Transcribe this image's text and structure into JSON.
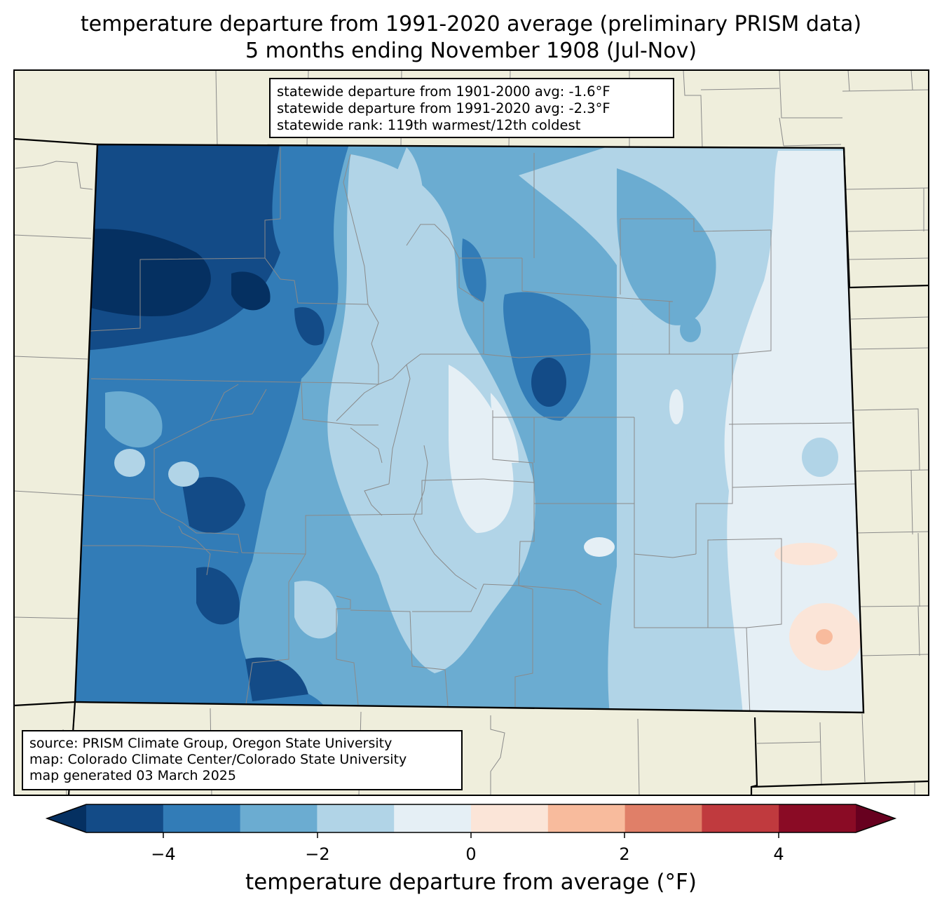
{
  "title": {
    "line1": "temperature departure from 1991-2020 average (preliminary PRISM data)",
    "line2": "5 months ending November 1908 (Jul-Nov)"
  },
  "stats_box": {
    "line1": "statewide departure from 1901-2000 avg: -1.6°F",
    "line2": "statewide departure from 1991-2020 avg: -2.3°F",
    "line3": "statewide rank: 119th warmest/12th coldest"
  },
  "source_box": {
    "line1": "source: PRISM Climate Group, Oregon State University",
    "line2": "map: Colorado Climate Center/Colorado State University",
    "line3": "map generated 03 March 2025"
  },
  "colorbar": {
    "label": "temperature departure from average (°F)",
    "ticks": [
      "−4",
      "−2",
      "0",
      "2",
      "4"
    ],
    "bins": [
      {
        "range": "< -5",
        "color": "#053061"
      },
      {
        "range": "-5 to -4",
        "color": "#134b87"
      },
      {
        "range": "-4 to -3",
        "color": "#327cb7"
      },
      {
        "range": "-3 to -2",
        "color": "#6bacd1"
      },
      {
        "range": "-2 to -1",
        "color": "#b1d4e7"
      },
      {
        "range": "-1 to 0",
        "color": "#e5eff5"
      },
      {
        "range": "0 to 1",
        "color": "#fbe5d8"
      },
      {
        "range": "1 to 2",
        "color": "#f8bb9d"
      },
      {
        "range": "2 to 3",
        "color": "#e07f68"
      },
      {
        "range": "3 to 4",
        "color": "#c03a3e"
      },
      {
        "range": "4 to 5",
        "color": "#8a0b25"
      },
      {
        "range": "> 5",
        "color": "#67001f"
      }
    ]
  },
  "map_colors": {
    "land": "#efeedc",
    "county_lines": "#888888",
    "state_lines": "#000000"
  }
}
